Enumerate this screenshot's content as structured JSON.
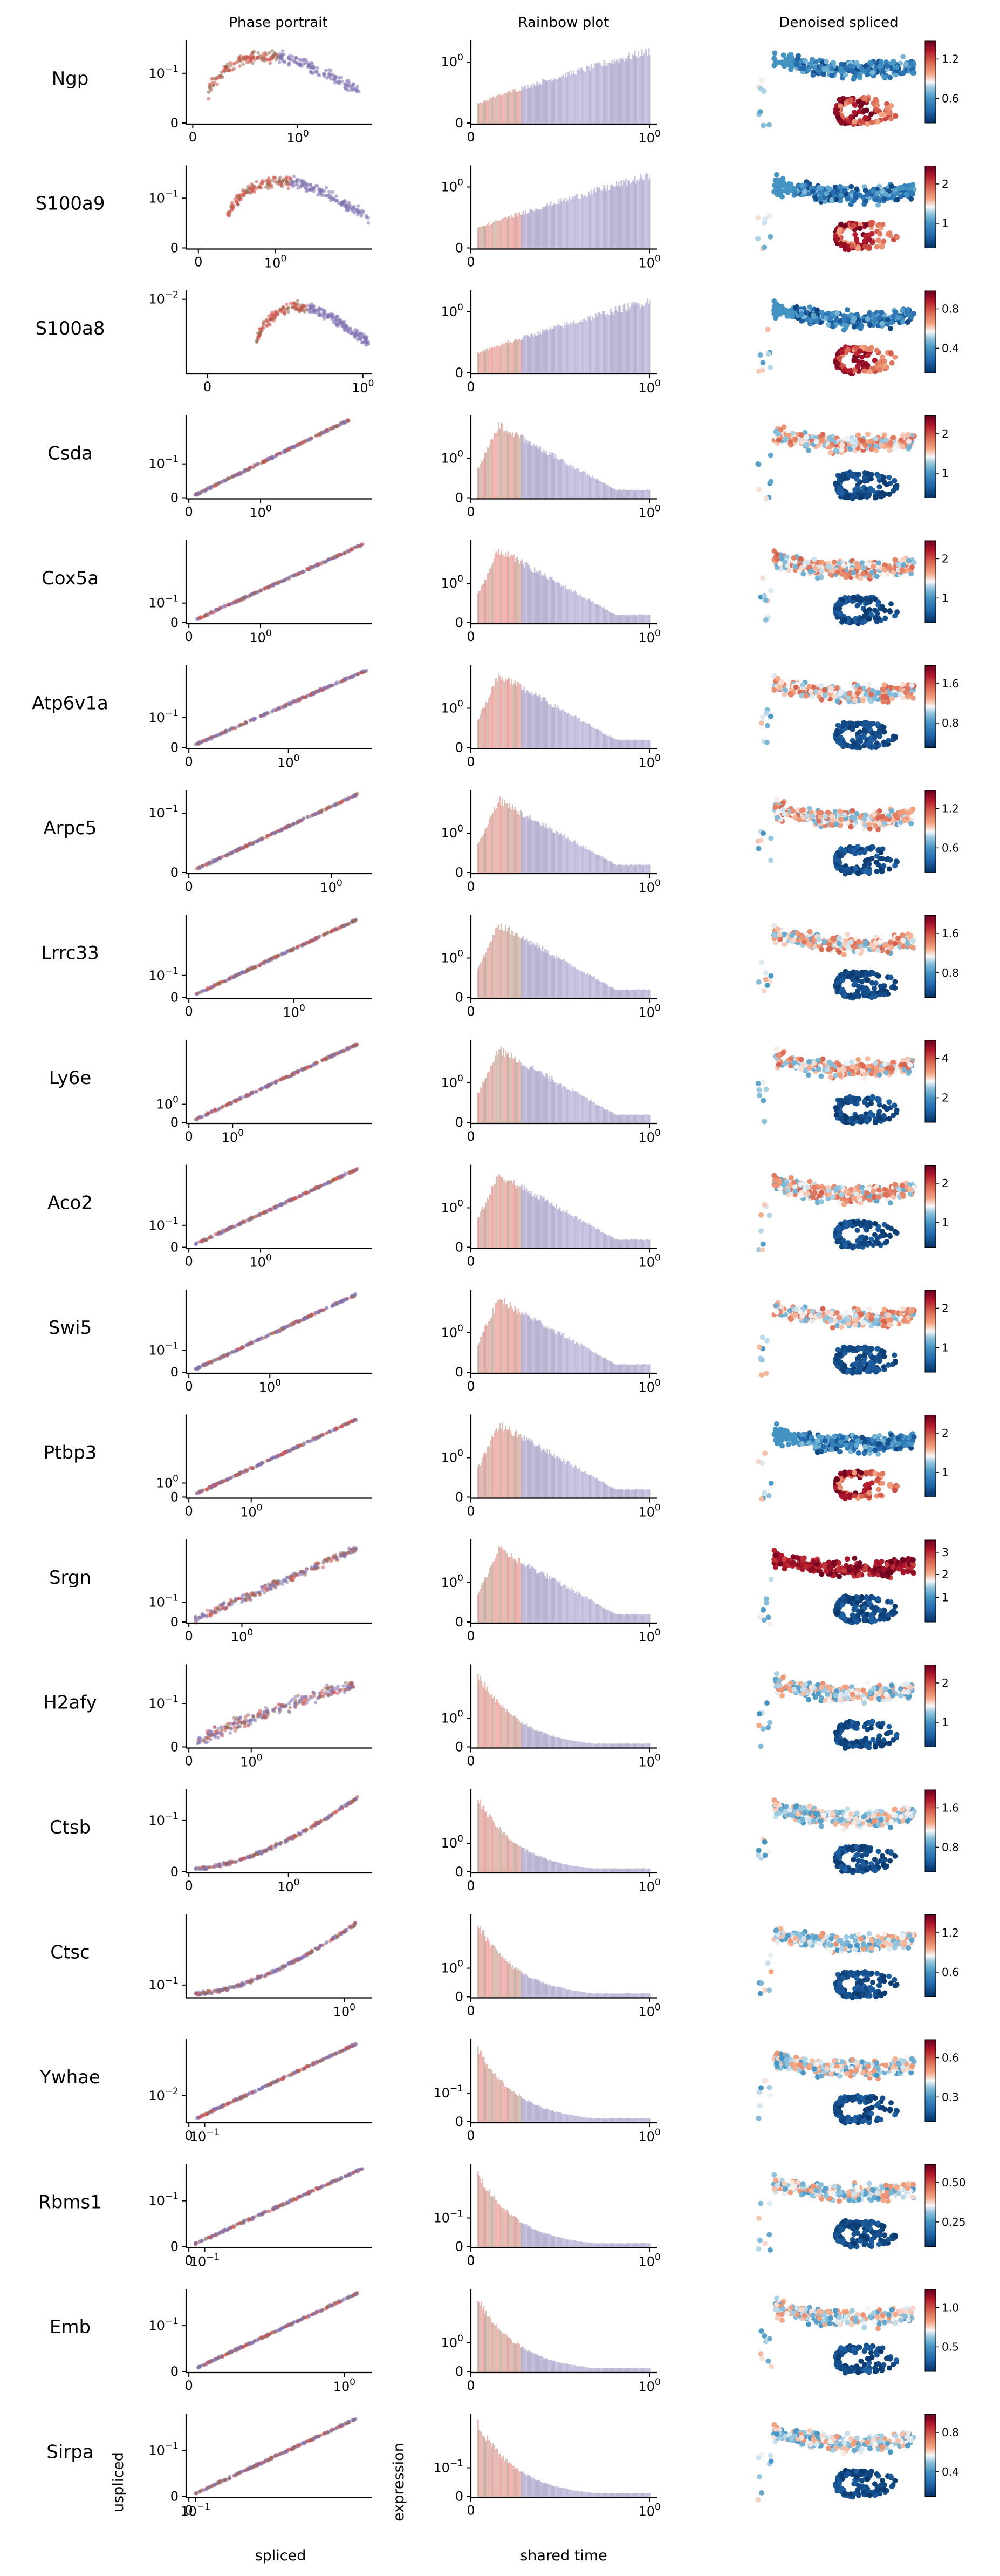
{
  "figure": {
    "column_titles": [
      "Phase portrait",
      "Rainbow plot",
      "Denoised spliced"
    ],
    "phase_xlabel": "spliced",
    "phase_ylabel": "uspliced",
    "rainbow_xlabel": "shared time",
    "rainbow_ylabel": "expression"
  },
  "colors": {
    "scatter_purple": "#8172b3",
    "scatter_red": "#d1524b",
    "scatter_brown": "#9a6a4e",
    "cmap_low": "#053061",
    "cmap_mid": "#f7f7f7",
    "cmap_high": "#67001f"
  },
  "chart_data": {
    "type": "scatter",
    "genes": [
      {
        "name": "Ngp",
        "phase": {
          "x_tick": "10^0",
          "y_tick": "10^-1",
          "x_zero": "0",
          "y_zero": "0",
          "x_tick_pos": 0.6,
          "y_tick_pos": 0.6,
          "shape": "arch_high",
          "x_start": 0.12,
          "x_end": 0.95
        },
        "rainbow": {
          "y_tick": "10^0",
          "y_zero": "0",
          "shape": "rise",
          "x_tick": "10^0",
          "x_zero": "0"
        },
        "umap": {
          "cbar_ticks": [
            "1.2",
            "0.6"
          ],
          "pattern": "top_high"
        }
      },
      {
        "name": "S100a9",
        "phase": {
          "x_tick": "10^0",
          "y_tick": "10^-1",
          "x_zero": "0",
          "y_zero": "0",
          "x_tick_pos": 0.48,
          "y_tick_pos": 0.6,
          "shape": "arch_mid",
          "x_start": 0.22,
          "x_end": 0.98
        },
        "rainbow": {
          "y_tick": "10^0",
          "y_zero": "0",
          "shape": "rise",
          "x_tick": "10^0",
          "x_zero": "0"
        },
        "umap": {
          "cbar_ticks": [
            "2",
            "1"
          ],
          "pattern": "top_high"
        }
      },
      {
        "name": "S100a8",
        "phase": {
          "x_tick": "10^0",
          "y_tick": "10^-2",
          "x_zero": "0",
          "y_zero": "",
          "x_tick_pos": 0.95,
          "y_tick_pos": 0.9,
          "shape": "arch_late",
          "x_start": 0.38,
          "x_end": 0.98
        },
        "rainbow": {
          "y_tick": "10^0",
          "y_zero": "0",
          "shape": "rise",
          "x_tick": "10^0",
          "x_zero": "0"
        },
        "umap": {
          "cbar_ticks": [
            "0.8",
            "0.4"
          ],
          "pattern": "top_high"
        }
      },
      {
        "name": "Csda",
        "phase": {
          "x_tick": "10^0",
          "y_tick": "10^-1",
          "x_zero": "0",
          "y_zero": "0",
          "x_tick_pos": 0.4,
          "y_tick_pos": 0.4,
          "shape": "line",
          "x_start": 0.05,
          "x_end": 0.88
        },
        "rainbow": {
          "y_tick": "10^0",
          "y_zero": "0",
          "shape": "decay_slow",
          "x_tick": "10^0",
          "x_zero": "0"
        },
        "umap": {
          "cbar_ticks": [
            "2",
            "1"
          ],
          "pattern": "bottom_high"
        }
      },
      {
        "name": "Cox5a",
        "phase": {
          "x_tick": "10^0",
          "y_tick": "10^-1",
          "x_zero": "0",
          "y_zero": "0",
          "x_tick_pos": 0.4,
          "y_tick_pos": 0.22,
          "shape": "line",
          "x_start": 0.05,
          "x_end": 0.95
        },
        "rainbow": {
          "y_tick": "10^0",
          "y_zero": "0",
          "shape": "decay_slow",
          "x_tick": "10^0",
          "x_zero": "0"
        },
        "umap": {
          "cbar_ticks": [
            "2",
            "1"
          ],
          "pattern": "bottom_high"
        }
      },
      {
        "name": "Atp6v1a",
        "phase": {
          "x_tick": "10^0",
          "y_tick": "10^-1",
          "x_zero": "0",
          "y_zero": "0",
          "x_tick_pos": 0.55,
          "y_tick_pos": 0.35,
          "shape": "line",
          "x_start": 0.05,
          "x_end": 0.98
        },
        "rainbow": {
          "y_tick": "10^0",
          "y_zero": "0",
          "shape": "decay_slow",
          "x_tick": "10^0",
          "x_zero": "0"
        },
        "umap": {
          "cbar_ticks": [
            "1.6",
            "0.8"
          ],
          "pattern": "bottom_high"
        }
      },
      {
        "name": "Arpc5",
        "phase": {
          "x_tick": "10^0",
          "y_tick": "10^-1",
          "x_zero": "0",
          "y_zero": "0",
          "x_tick_pos": 0.78,
          "y_tick_pos": 0.72,
          "shape": "line",
          "x_start": 0.05,
          "x_end": 0.92
        },
        "rainbow": {
          "y_tick": "10^0",
          "y_zero": "0",
          "shape": "decay_slow",
          "x_tick": "10^0",
          "x_zero": "0"
        },
        "umap": {
          "cbar_ticks": [
            "1.2",
            "0.6"
          ],
          "pattern": "bottom_high"
        }
      },
      {
        "name": "Lrrc33",
        "phase": {
          "x_tick": "10^0",
          "y_tick": "10^-1",
          "x_zero": "0",
          "y_zero": "0",
          "x_tick_pos": 0.58,
          "y_tick_pos": 0.25,
          "shape": "line",
          "x_start": 0.05,
          "x_end": 0.92
        },
        "rainbow": {
          "y_tick": "10^0",
          "y_zero": "0",
          "shape": "decay_slow",
          "x_tick": "10^0",
          "x_zero": "0"
        },
        "umap": {
          "cbar_ticks": [
            "1.6",
            "0.8"
          ],
          "pattern": "bottom_high"
        }
      },
      {
        "name": "Ly6e",
        "phase": {
          "x_tick": "10^0",
          "y_tick": "10^0",
          "x_zero": "0",
          "y_zero": "0",
          "x_tick_pos": 0.25,
          "y_tick_pos": 0.2,
          "shape": "line",
          "x_start": 0.05,
          "x_end": 0.92
        },
        "rainbow": {
          "y_tick": "10^0",
          "y_zero": "0",
          "shape": "decay_slow",
          "x_tick": "10^0",
          "x_zero": "0"
        },
        "umap": {
          "cbar_ticks": [
            "4",
            "2"
          ],
          "pattern": "bottom_high"
        }
      },
      {
        "name": "Aco2",
        "phase": {
          "x_tick": "10^0",
          "y_tick": "10^-1",
          "x_zero": "0",
          "y_zero": "0",
          "x_tick_pos": 0.4,
          "y_tick_pos": 0.25,
          "shape": "line",
          "x_start": 0.05,
          "x_end": 0.92
        },
        "rainbow": {
          "y_tick": "10^0",
          "y_zero": "0",
          "shape": "decay_slow",
          "x_tick": "10^0",
          "x_zero": "0"
        },
        "umap": {
          "cbar_ticks": [
            "2",
            "1"
          ],
          "pattern": "bottom_high"
        }
      },
      {
        "name": "Swi5",
        "phase": {
          "x_tick": "10^0",
          "y_tick": "10^-1",
          "x_zero": "0",
          "y_zero": "0",
          "x_tick_pos": 0.45,
          "y_tick_pos": 0.25,
          "shape": "line",
          "x_start": 0.05,
          "x_end": 0.92
        },
        "rainbow": {
          "y_tick": "10^0",
          "y_zero": "0",
          "shape": "decay_slow",
          "x_tick": "10^0",
          "x_zero": "0"
        },
        "umap": {
          "cbar_ticks": [
            "2",
            "1"
          ],
          "pattern": "bottom_high"
        }
      },
      {
        "name": "Ptbp3",
        "phase": {
          "x_tick": "10^0",
          "y_tick": "10^0",
          "x_zero": "0",
          "y_zero": "0",
          "x_tick_pos": 0.35,
          "y_tick_pos": 0.15,
          "shape": "line",
          "x_start": 0.05,
          "x_end": 0.92
        },
        "rainbow": {
          "y_tick": "10^0",
          "y_zero": "0",
          "shape": "decay_slow",
          "x_tick": "10^0",
          "x_zero": "0"
        },
        "umap": {
          "cbar_ticks": [
            "2",
            "1"
          ],
          "pattern": "top_high"
        }
      },
      {
        "name": "Srgn",
        "phase": {
          "x_tick": "10^0",
          "y_tick": "10^-1",
          "x_zero": "0",
          "y_zero": "0",
          "x_tick_pos": 0.3,
          "y_tick_pos": 0.22,
          "shape": "wide_line",
          "x_start": 0.05,
          "x_end": 0.92
        },
        "rainbow": {
          "y_tick": "10^0",
          "y_zero": "0",
          "shape": "decay_slow",
          "x_tick": "10^0",
          "x_zero": "0"
        },
        "umap": {
          "cbar_ticks": [
            "3",
            "2",
            "1"
          ],
          "pattern": "top_very_high"
        }
      },
      {
        "name": "H2afy",
        "phase": {
          "x_tick": "10^0",
          "y_tick": "10^-1",
          "x_zero": "0",
          "y_zero": "0",
          "x_tick_pos": 0.35,
          "y_tick_pos": 0.52,
          "shape": "cloud",
          "x_start": 0.05,
          "x_end": 0.9
        },
        "rainbow": {
          "y_tick": "10^0",
          "y_zero": "0",
          "shape": "decay_fast",
          "x_tick": "10^0",
          "x_zero": "0"
        },
        "umap": {
          "cbar_ticks": [
            "2",
            "1"
          ],
          "pattern": "top_med"
        }
      },
      {
        "name": "Ctsb",
        "phase": {
          "x_tick": "10^0",
          "y_tick": "10^-1",
          "x_zero": "0",
          "y_zero": "0",
          "x_tick_pos": 0.55,
          "y_tick_pos": 0.62,
          "shape": "curve_up",
          "x_start": 0.05,
          "x_end": 0.92
        },
        "rainbow": {
          "y_tick": "10^0",
          "y_zero": "0",
          "shape": "decay_fast",
          "x_tick": "10^0",
          "x_zero": "0"
        },
        "umap": {
          "cbar_ticks": [
            "1.6",
            "0.8"
          ],
          "pattern": "top_med"
        }
      },
      {
        "name": "Ctsc",
        "phase": {
          "x_tick": "10^0",
          "y_tick": "10^-1",
          "x_zero": "",
          "y_zero": "",
          "x_tick_pos": 0.85,
          "y_tick_pos": 0.12,
          "shape": "curve_up",
          "x_start": 0.05,
          "x_end": 0.92
        },
        "rainbow": {
          "y_tick": "10^0",
          "y_zero": "0",
          "shape": "decay_fast",
          "x_tick": "10^0",
          "x_zero": "0"
        },
        "umap": {
          "cbar_ticks": [
            "1.2",
            "0.6"
          ],
          "pattern": "top_med"
        }
      },
      {
        "name": "Ywhae",
        "phase": {
          "x_tick": "10^-1",
          "y_tick": "10^-2",
          "x_zero": "0",
          "y_zero": "",
          "x_tick_pos": 0.1,
          "y_tick_pos": 0.3,
          "shape": "line",
          "x_start": 0.05,
          "x_end": 0.92
        },
        "rainbow": {
          "y_tick": "10^-1",
          "y_zero": "0",
          "shape": "decay_fast",
          "x_tick": "10^0",
          "x_zero": "0"
        },
        "umap": {
          "cbar_ticks": [
            "0.6",
            "0.3"
          ],
          "pattern": "top_med"
        }
      },
      {
        "name": "Rbms1",
        "phase": {
          "x_tick": "10^-1",
          "y_tick": "10^-1",
          "x_zero": "0",
          "y_zero": "0",
          "x_tick_pos": 0.1,
          "y_tick_pos": 0.55,
          "shape": "line",
          "x_start": 0.05,
          "x_end": 0.95
        },
        "rainbow": {
          "y_tick": "10^-1",
          "y_zero": "0",
          "shape": "decay_fast",
          "x_tick": "10^0",
          "x_zero": "0"
        },
        "umap": {
          "cbar_ticks": [
            "0.50",
            "0.25"
          ],
          "pattern": "top_med"
        }
      },
      {
        "name": "Emb",
        "phase": {
          "x_tick": "10^0",
          "y_tick": "10^-1",
          "x_zero": "0",
          "y_zero": "0",
          "x_tick_pos": 0.85,
          "y_tick_pos": 0.55,
          "shape": "line",
          "x_start": 0.05,
          "x_end": 0.92
        },
        "rainbow": {
          "y_tick": "10^0",
          "y_zero": "0",
          "shape": "decay_fast",
          "x_tick": "10^0",
          "x_zero": "0"
        },
        "umap": {
          "cbar_ticks": [
            "1.0",
            "0.5"
          ],
          "pattern": "top_med"
        }
      },
      {
        "name": "Sirpa",
        "phase": {
          "x_tick": "10^-1",
          "y_tick": "10^-1",
          "x_zero": "0",
          "y_zero": "0",
          "x_tick_pos": 0.05,
          "y_tick_pos": 0.55,
          "shape": "line",
          "x_start": 0.05,
          "x_end": 0.92
        },
        "rainbow": {
          "y_tick": "10^-1",
          "y_zero": "0",
          "shape": "decay_fast",
          "x_tick": "10^0",
          "x_zero": "0"
        },
        "umap": {
          "cbar_ticks": [
            "0.8",
            "0.4"
          ],
          "pattern": "top_med"
        }
      }
    ]
  }
}
